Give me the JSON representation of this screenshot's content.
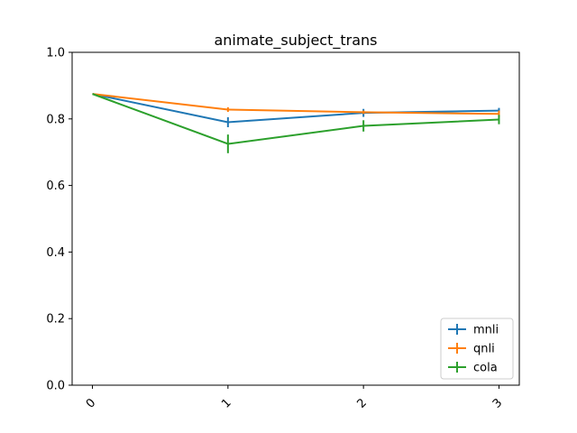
{
  "chart_data": {
    "type": "line",
    "title": "animate_subject_trans",
    "xlabel": "",
    "ylabel": "",
    "x": [
      0,
      1,
      2,
      3
    ],
    "x_tick_labels": [
      "0",
      "1",
      "2",
      "3"
    ],
    "y_tick_labels": [
      "0.0",
      "0.2",
      "0.4",
      "0.6",
      "0.8",
      "1.0"
    ],
    "ylim": [
      0,
      1
    ],
    "grid": false,
    "legend_position": "bottom-right",
    "series": [
      {
        "name": "mnli",
        "color": "#1f77b4",
        "values": [
          0.875,
          0.79,
          0.818,
          0.825
        ],
        "errors": [
          0,
          0.015,
          0.012,
          0.008
        ]
      },
      {
        "name": "qnli",
        "color": "#ff7f0e",
        "values": [
          0.875,
          0.828,
          0.82,
          0.815
        ],
        "errors": [
          0,
          0.007,
          0.005,
          0.01
        ]
      },
      {
        "name": "cola",
        "color": "#2ca02c",
        "values": [
          0.875,
          0.725,
          0.779,
          0.798
        ],
        "errors": [
          0,
          0.028,
          0.017,
          0.014
        ]
      }
    ]
  }
}
